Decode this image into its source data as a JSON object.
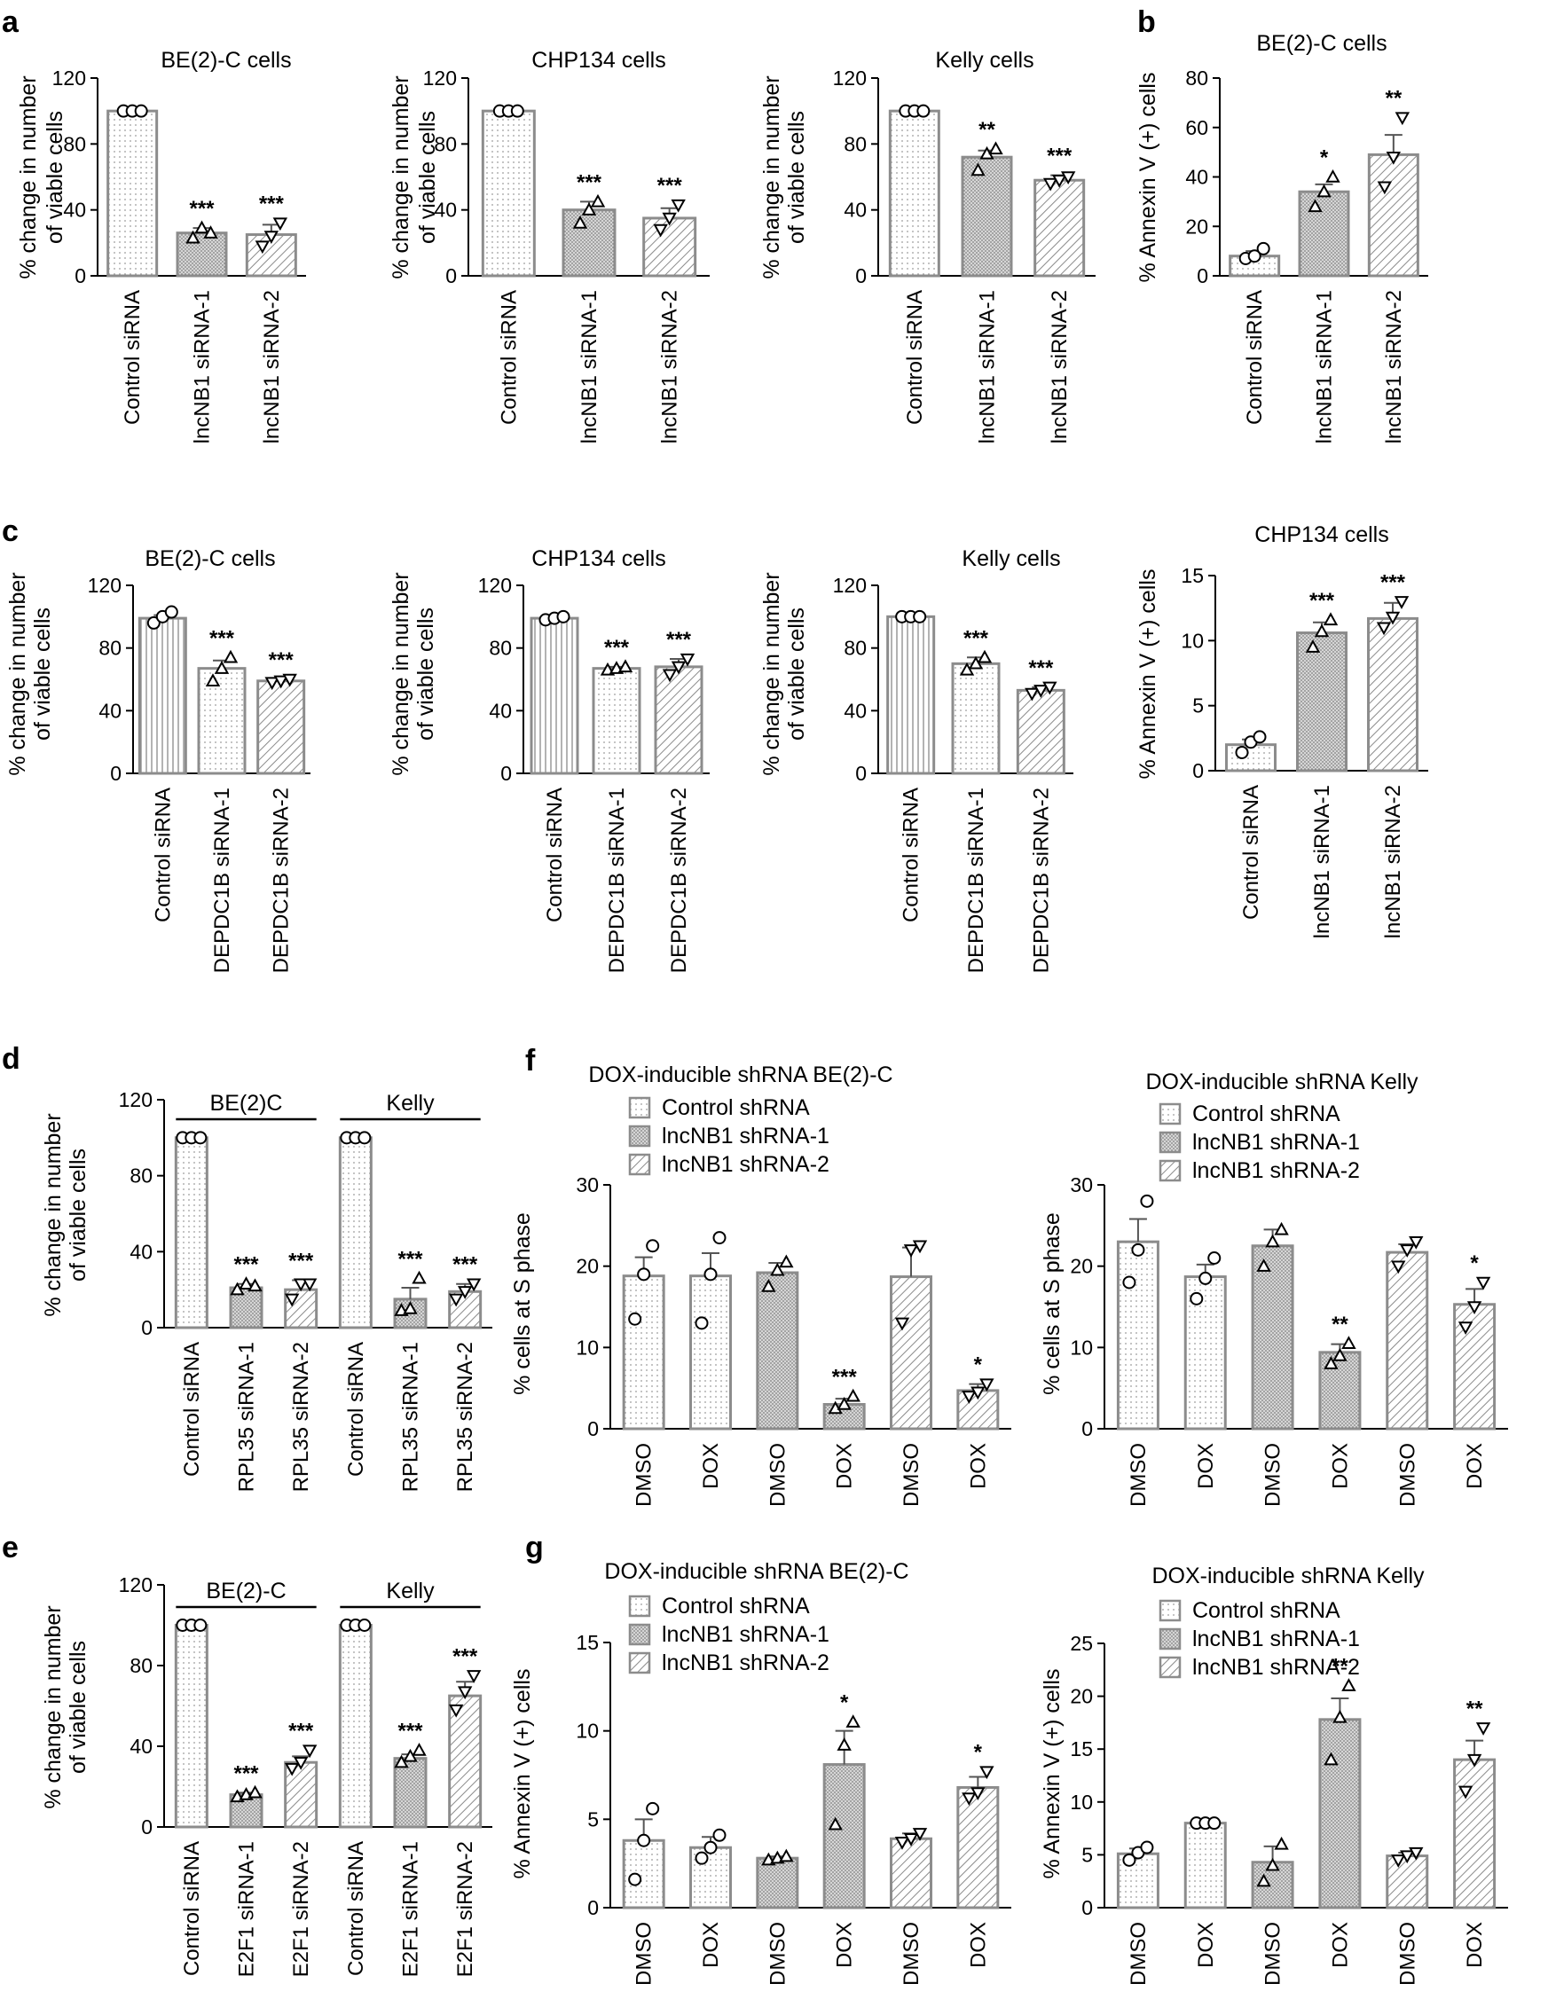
{
  "chart_data": [
    {
      "panel": "a",
      "type": "bar",
      "title": "BE(2)-C cells",
      "ylabel": [
        "% change in number",
        "of viable cells"
      ],
      "ylim": [
        0,
        120
      ],
      "yticks": [
        0,
        40,
        80,
        120
      ],
      "categories": [
        "Control siRNA",
        "lncNB1 siRNA-1",
        "lncNB1 siRNA-2"
      ],
      "values": [
        100,
        26,
        25
      ],
      "errors": [
        0,
        3,
        6
      ],
      "points": [
        [
          100,
          100,
          100
        ],
        [
          23,
          29,
          26
        ],
        [
          18,
          24,
          32
        ]
      ],
      "markers": [
        "circle",
        "tri-up",
        "tri-down"
      ],
      "patterns": [
        "dots",
        "dense",
        "diag"
      ],
      "stars": [
        "",
        "***",
        "***"
      ]
    },
    {
      "type": "bar",
      "title": "CHP134 cells",
      "ylabel": [
        "% change in number",
        "of viable cells"
      ],
      "ylim": [
        0,
        120
      ],
      "yticks": [
        0,
        40,
        80,
        120
      ],
      "categories": [
        "Control siRNA",
        "lncNB1 siRNA-1",
        "lncNB1 siRNA-2"
      ],
      "values": [
        100,
        40,
        35
      ],
      "errors": [
        0,
        5,
        6
      ],
      "points": [
        [
          100,
          100,
          100
        ],
        [
          32,
          40,
          45
        ],
        [
          28,
          35,
          43
        ]
      ],
      "markers": [
        "circle",
        "tri-up",
        "tri-down"
      ],
      "patterns": [
        "dots",
        "dense",
        "diag"
      ],
      "stars": [
        "",
        "***",
        "***"
      ]
    },
    {
      "type": "bar",
      "title": "Kelly cells",
      "ylabel": [
        "% change in number",
        "of viable cells"
      ],
      "ylim": [
        0,
        120
      ],
      "yticks": [
        0,
        40,
        80,
        120
      ],
      "categories": [
        "Control siRNA",
        "lncNB1 siRNA-1",
        "lncNB1 siRNA-2"
      ],
      "values": [
        100,
        72,
        58
      ],
      "errors": [
        0,
        4,
        3
      ],
      "points": [
        [
          100,
          100,
          100
        ],
        [
          64,
          74,
          77
        ],
        [
          56,
          58,
          60
        ]
      ],
      "markers": [
        "circle",
        "tri-up",
        "tri-down"
      ],
      "patterns": [
        "dots",
        "dense",
        "diag"
      ],
      "stars": [
        "",
        "**",
        "***"
      ]
    },
    {
      "panel": "b",
      "type": "bar",
      "title": "BE(2)-C cells",
      "ylabel": [
        "% Annexin V (+) cells"
      ],
      "ylim": [
        0,
        80
      ],
      "yticks": [
        0,
        20,
        40,
        60,
        80
      ],
      "categories": [
        "Control siRNA",
        "lncNB1 siRNA-1",
        "lncNB1 siRNA-2"
      ],
      "values": [
        8,
        34,
        49
      ],
      "errors": [
        2,
        3,
        8
      ],
      "points": [
        [
          7,
          8,
          11
        ],
        [
          28,
          34,
          40
        ],
        [
          36,
          48,
          64
        ]
      ],
      "markers": [
        "circle",
        "tri-up",
        "tri-down"
      ],
      "patterns": [
        "dots",
        "dense",
        "diag"
      ],
      "stars": [
        "",
        "*",
        "**"
      ]
    },
    {
      "panel": "c",
      "type": "bar",
      "title": "BE(2)-C cells",
      "ylabel": [
        "% change in number",
        "of viable cells"
      ],
      "ylim": [
        0,
        120
      ],
      "yticks": [
        0,
        40,
        80,
        120
      ],
      "categories": [
        "Control siRNA",
        "DEPDC1B siRNA-1",
        "DEPDC1B siRNA-2"
      ],
      "values": [
        99,
        67,
        59
      ],
      "errors": [
        2,
        5,
        1
      ],
      "points": [
        [
          96,
          100,
          103
        ],
        [
          59,
          67,
          74
        ],
        [
          58,
          59,
          60
        ]
      ],
      "markers": [
        "circle",
        "tri-up",
        "tri-down"
      ],
      "patterns": [
        "vlines",
        "dots",
        "diag"
      ],
      "stars": [
        "",
        "***",
        "***"
      ]
    },
    {
      "type": "bar",
      "title": "CHP134 cells",
      "ylabel": [
        "% change in number",
        "of viable cells"
      ],
      "ylim": [
        0,
        120
      ],
      "yticks": [
        0,
        40,
        80,
        120
      ],
      "categories": [
        "Control siRNA",
        "DEPDC1B siRNA-1",
        "DEPDC1B siRNA-2"
      ],
      "values": [
        99,
        67,
        68
      ],
      "errors": [
        1,
        1,
        5
      ],
      "points": [
        [
          98,
          99,
          100
        ],
        [
          66,
          67,
          68
        ],
        [
          63,
          68,
          73
        ]
      ],
      "markers": [
        "circle",
        "tri-up",
        "tri-down"
      ],
      "patterns": [
        "vlines",
        "dots",
        "diag"
      ],
      "stars": [
        "",
        "***",
        "***"
      ]
    },
    {
      "type": "bar",
      "title": "Kelly cells",
      "ylabel": [
        "% change in number",
        "of viable cells"
      ],
      "ylim": [
        0,
        120
      ],
      "yticks": [
        0,
        40,
        80,
        120
      ],
      "categories": [
        "Control siRNA",
        "DEPDC1B siRNA-1",
        "DEPDC1B siRNA-2"
      ],
      "values": [
        100,
        70,
        53
      ],
      "errors": [
        0,
        4,
        2
      ],
      "points": [
        [
          100,
          100,
          100
        ],
        [
          66,
          70,
          74
        ],
        [
          51,
          53,
          55
        ]
      ],
      "markers": [
        "circle",
        "tri-up",
        "tri-down"
      ],
      "patterns": [
        "vlines",
        "dots",
        "diag"
      ],
      "stars": [
        "",
        "***",
        "***"
      ]
    },
    {
      "type": "bar",
      "title": "CHP134 cells",
      "ylabel": [
        "% Annexin V (+) cells"
      ],
      "ylim": [
        0,
        15
      ],
      "yticks": [
        0,
        5,
        10,
        15
      ],
      "categories": [
        "Control siRNA",
        "lncNB1 siRNA-1",
        "lncNB1 siRNA-2"
      ],
      "values": [
        2,
        10.6,
        11.7
      ],
      "errors": [
        0.4,
        0.8,
        1.2
      ],
      "points": [
        [
          1.4,
          2.2,
          2.6
        ],
        [
          9.5,
          10.7,
          11.6
        ],
        [
          11.0,
          11.8,
          13.0
        ]
      ],
      "markers": [
        "circle",
        "tri-up",
        "tri-down"
      ],
      "patterns": [
        "dots",
        "dense",
        "diag"
      ],
      "stars": [
        "",
        "***",
        "***"
      ]
    },
    {
      "panel": "d",
      "type": "bar",
      "ylabel": [
        "% change in number",
        "of viable cells"
      ],
      "ylim": [
        0,
        120
      ],
      "yticks": [
        0,
        40,
        80,
        120
      ],
      "groups": [
        {
          "label": "BE(2)C",
          "span": [
            0,
            2
          ]
        },
        {
          "label": "Kelly",
          "span": [
            3,
            5
          ]
        }
      ],
      "categories": [
        "Control siRNA",
        "RPL35 siRNA-1",
        "RPL35 siRNA-2",
        "Control siRNA",
        "RPL35 siRNA-1",
        "RPL35 siRNA-2"
      ],
      "values": [
        100,
        21,
        20,
        100,
        15,
        19
      ],
      "errors": [
        0,
        2,
        5,
        0,
        6,
        4
      ],
      "points": [
        [
          100,
          100,
          100
        ],
        [
          20,
          23,
          22
        ],
        [
          15,
          23,
          23
        ],
        [
          100,
          100,
          100
        ],
        [
          9,
          10,
          26
        ],
        [
          15,
          19,
          23
        ]
      ],
      "markers": [
        "circle",
        "tri-up",
        "tri-down",
        "circle",
        "tri-up",
        "tri-down"
      ],
      "patterns": [
        "dots",
        "dense",
        "diag",
        "dots",
        "dense",
        "diag"
      ],
      "stars": [
        "",
        "***",
        "***",
        "",
        "***",
        "***"
      ]
    },
    {
      "panel": "e",
      "type": "bar",
      "ylabel": [
        "% change in number",
        "of viable cells"
      ],
      "ylim": [
        0,
        120
      ],
      "yticks": [
        0,
        40,
        80,
        120
      ],
      "groups": [
        {
          "label": "BE(2)-C",
          "span": [
            0,
            2
          ]
        },
        {
          "label": "Kelly",
          "span": [
            3,
            5
          ]
        }
      ],
      "categories": [
        "Control siRNA",
        "E2F1 siRNA-1",
        "E2F1 siRNA-2",
        "Control siRNA",
        "E2F1 siRNA-1",
        "E2F1 siRNA-2"
      ],
      "values": [
        100,
        16,
        32,
        100,
        34,
        65
      ],
      "errors": [
        0,
        1,
        3,
        0,
        2,
        7
      ],
      "points": [
        [
          100,
          100,
          100
        ],
        [
          15,
          16,
          17
        ],
        [
          29,
          32,
          38
        ],
        [
          100,
          100,
          100
        ],
        [
          32,
          35,
          38
        ],
        [
          58,
          67,
          75
        ]
      ],
      "markers": [
        "circle",
        "tri-up",
        "tri-down",
        "circle",
        "tri-up",
        "tri-down"
      ],
      "patterns": [
        "dots",
        "dense",
        "diag",
        "dots",
        "dense",
        "diag"
      ],
      "stars": [
        "",
        "***",
        "***",
        "",
        "***",
        "***"
      ]
    },
    {
      "panel": "f",
      "type": "bar",
      "title": "DOX-inducible shRNA BE(2)-C",
      "ylabel": [
        "% cells at S phase"
      ],
      "ylim": [
        0,
        30
      ],
      "yticks": [
        0,
        10,
        20,
        30
      ],
      "legend": [
        "Control shRNA",
        "lncNB1 shRNA-1",
        "lncNB1 shRNA-2"
      ],
      "categories": [
        "DMSO",
        "DOX",
        "DMSO",
        "DOX",
        "DMSO",
        "DOX"
      ],
      "values": [
        18.8,
        18.8,
        19.2,
        3,
        18.7,
        4.7
      ],
      "errors": [
        2.3,
        2.8,
        1.2,
        0.7,
        3.6,
        0.8
      ],
      "points": [
        [
          13.5,
          19,
          22.5
        ],
        [
          13,
          19,
          23.5
        ],
        [
          17.5,
          19.5,
          20.5
        ],
        [
          2.5,
          3,
          4
        ],
        [
          13,
          22,
          22.5
        ],
        [
          4,
          4.5,
          5.5
        ]
      ],
      "markers": [
        "circle",
        "circle",
        "tri-up",
        "tri-up",
        "tri-down",
        "tri-down"
      ],
      "patterns": [
        "dots",
        "dots",
        "dense",
        "dense",
        "diag",
        "diag"
      ],
      "stars": [
        "",
        "",
        "",
        "***",
        "",
        "*"
      ]
    },
    {
      "type": "bar",
      "title": "DOX-inducible shRNA Kelly",
      "ylabel": [
        "% cells at S phase"
      ],
      "ylim": [
        0,
        30
      ],
      "yticks": [
        0,
        10,
        20,
        30
      ],
      "legend": [
        "Control shRNA",
        "lncNB1 shRNA-1",
        "lncNB1 shRNA-2"
      ],
      "categories": [
        "DMSO",
        "DOX",
        "DMSO",
        "DOX",
        "DMSO",
        "DOX"
      ],
      "values": [
        23,
        18.7,
        22.5,
        9.4,
        21.7,
        15.3
      ],
      "errors": [
        2.8,
        1.5,
        2,
        1,
        1,
        1.9
      ],
      "points": [
        [
          18,
          22,
          28
        ],
        [
          16,
          18.5,
          21
        ],
        [
          20,
          23,
          24.5
        ],
        [
          8,
          9,
          10.5
        ],
        [
          20,
          22,
          23
        ],
        [
          12.5,
          15,
          18
        ]
      ],
      "markers": [
        "circle",
        "circle",
        "tri-up",
        "tri-up",
        "tri-down",
        "tri-down"
      ],
      "patterns": [
        "dots",
        "dots",
        "dense",
        "dense",
        "diag",
        "diag"
      ],
      "stars": [
        "",
        "",
        "",
        "**",
        "",
        "*"
      ]
    },
    {
      "panel": "g",
      "type": "bar",
      "title": "DOX-inducible shRNA BE(2)-C",
      "ylabel": [
        "% Annexin V (+) cells"
      ],
      "ylim": [
        0,
        15
      ],
      "yticks": [
        0,
        5,
        10,
        15
      ],
      "legend": [
        "Control shRNA",
        "lncNB1 shRNA-1",
        "lncNB1 shRNA-2"
      ],
      "categories": [
        "DMSO",
        "DOX",
        "DMSO",
        "DOX",
        "DMSO",
        "DOX"
      ],
      "values": [
        3.8,
        3.4,
        2.8,
        8.1,
        3.9,
        6.8
      ],
      "errors": [
        1.2,
        0.6,
        0.1,
        1.9,
        0.3,
        0.6
      ],
      "points": [
        [
          1.6,
          3.8,
          5.6
        ],
        [
          2.8,
          3.4,
          4.1
        ],
        [
          2.7,
          2.8,
          2.9
        ],
        [
          4.7,
          9.2,
          10.5
        ],
        [
          3.7,
          3.9,
          4.2
        ],
        [
          6.2,
          6.5,
          7.7
        ]
      ],
      "markers": [
        "circle",
        "circle",
        "tri-up",
        "tri-up",
        "tri-down",
        "tri-down"
      ],
      "patterns": [
        "dots",
        "dots",
        "dense",
        "dense",
        "diag",
        "diag"
      ],
      "stars": [
        "",
        "",
        "",
        "*",
        "",
        "*"
      ]
    },
    {
      "type": "bar",
      "title": "DOX-inducible shRNA Kelly",
      "ylabel": [
        "% Annexin V (+) cells"
      ],
      "ylim": [
        0,
        25
      ],
      "yticks": [
        0,
        5,
        10,
        15,
        20,
        25
      ],
      "legend": [
        "Control shRNA",
        "lncNB1 shRNA-1",
        "lncNB1 shRNA-2"
      ],
      "categories": [
        "DMSO",
        "DOX",
        "DMSO",
        "DOX",
        "DMSO",
        "DOX"
      ],
      "values": [
        5.1,
        8,
        4.3,
        17.8,
        4.9,
        14
      ],
      "errors": [
        0.5,
        0.1,
        1.5,
        2,
        0.3,
        1.8
      ],
      "points": [
        [
          4.5,
          5.2,
          5.7
        ],
        [
          8,
          8,
          8
        ],
        [
          2.5,
          4,
          6
        ],
        [
          14,
          18,
          21
        ],
        [
          4.5,
          4.9,
          5.2
        ],
        [
          11,
          14,
          17
        ]
      ],
      "markers": [
        "circle",
        "circle",
        "tri-up",
        "tri-up",
        "tri-down",
        "tri-down"
      ],
      "patterns": [
        "dots",
        "dots",
        "dense",
        "dense",
        "diag",
        "diag"
      ],
      "stars": [
        "",
        "",
        "",
        "**",
        "",
        "**"
      ]
    }
  ],
  "panel_letters": {
    "a": "a",
    "b": "b",
    "c": "c",
    "d": "d",
    "e": "e",
    "f": "f",
    "g": "g"
  },
  "colors": {
    "bar_edge": "#8c8c8c",
    "fill": "#ffffff",
    "pattern": "#9a9a9a",
    "axis": "#000000"
  }
}
